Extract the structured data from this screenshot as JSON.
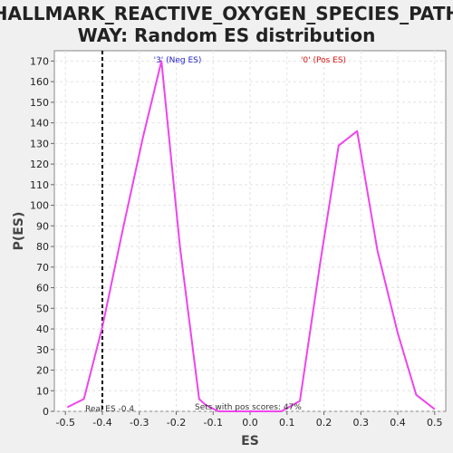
{
  "chart_data": {
    "type": "line",
    "title_lines": [
      "HALLMARK_REACTIVE_OXYGEN_SPECIES_PATH",
      "WAY: Random ES distribution"
    ],
    "xlabel": "ES",
    "ylabel": "P(ES)",
    "xlim": [
      -0.53,
      0.53
    ],
    "ylim": [
      0,
      175
    ],
    "x_ticks": [
      "-0.5",
      "-0.4",
      "-0.3",
      "-0.2",
      "-0.1",
      "0.0",
      "0.1",
      "0.2",
      "0.3",
      "0.4",
      "0.5"
    ],
    "y_ticks": [
      "0",
      "10",
      "20",
      "30",
      "40",
      "50",
      "60",
      "70",
      "80",
      "90",
      "100",
      "110",
      "120",
      "130",
      "140",
      "150",
      "160",
      "170"
    ],
    "grid": true,
    "series": [
      {
        "color": "#ee44ee",
        "x": [
          -0.495,
          -0.45,
          -0.4,
          -0.345,
          -0.29,
          -0.24,
          -0.19,
          -0.138,
          -0.12,
          -0.085,
          0.0,
          0.085,
          0.135,
          0.19,
          0.24,
          0.29,
          0.345,
          0.4,
          0.45,
          0.5
        ],
        "y": [
          2,
          6,
          41,
          88,
          133,
          170,
          80,
          6,
          3,
          0,
          0,
          0,
          5,
          72,
          129,
          136,
          78,
          38,
          8,
          1
        ]
      }
    ],
    "annotations": {
      "neg_label": "'3' (Neg ES)",
      "pos_label": "'0' (Pos ES)",
      "real_es_label": "Real ES -0.4",
      "sets_label": "Sets with pos scores: 47%",
      "neg_color": "#2222cc",
      "pos_color": "#dd1111"
    },
    "real_es": -0.4
  }
}
